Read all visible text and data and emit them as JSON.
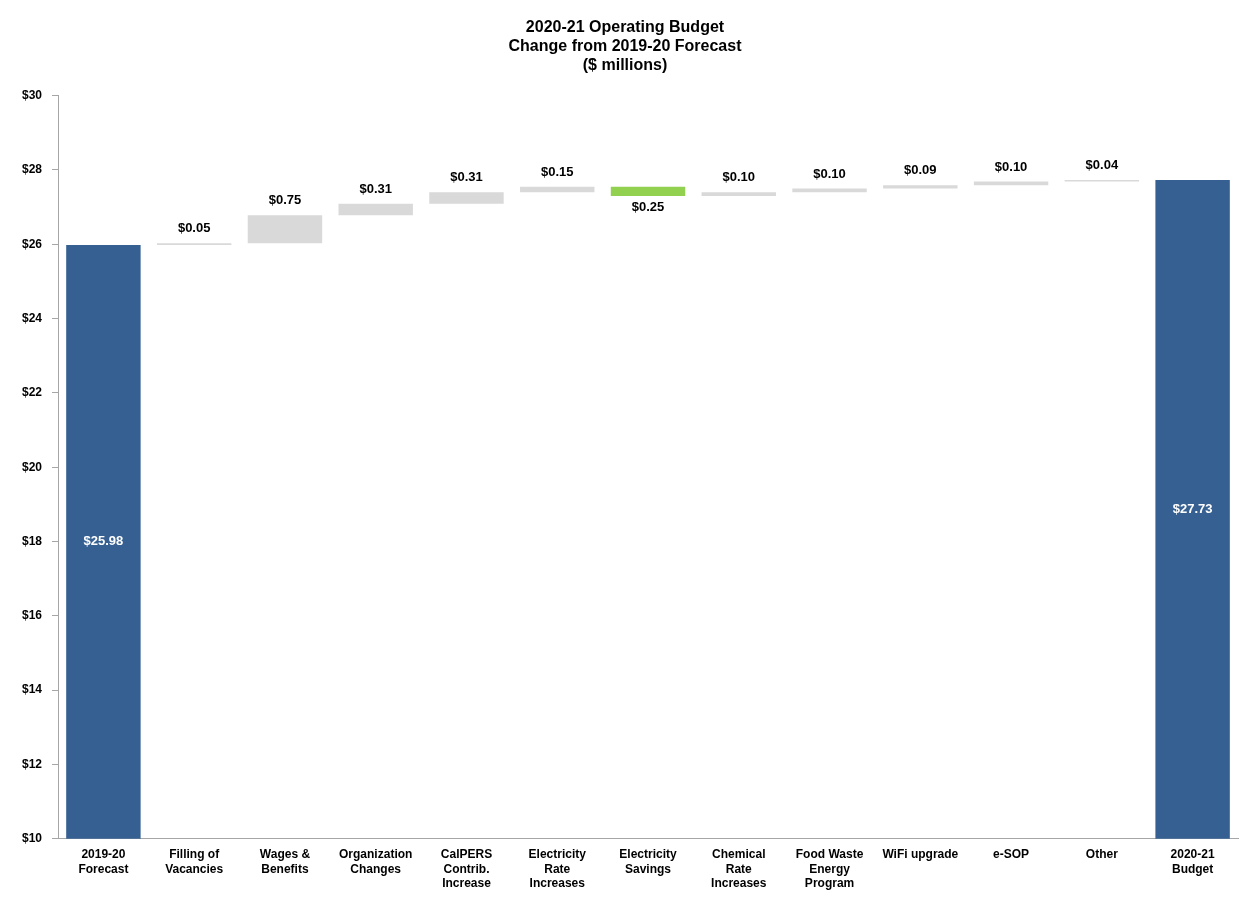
{
  "chart_data": {
    "type": "bar",
    "title": "2020-21 Operating Budget",
    "subtitle": "Change from 2019-20 Forecast ($ millions)",
    "categories": [
      "2019-20 Forecast",
      "Filling of Vacancies",
      "Wages & Benefits",
      "Organization Changes",
      "CalPERS Contrib. Increase",
      "Electricity Rate Increases",
      "Electricity Savings",
      "Chemical Rate Increases",
      "Food Waste Energy Program",
      "WiFi upgrade",
      "e-SOP",
      "Other",
      "2020-21 Budget"
    ],
    "values": [
      25.98,
      0.05,
      0.75,
      0.31,
      0.31,
      0.15,
      -0.25,
      0.1,
      0.1,
      0.09,
      0.1,
      0.04,
      27.73
    ],
    "base": [
      null,
      25.98,
      26.03,
      26.78,
      27.09,
      27.4,
      27.55,
      27.3,
      27.4,
      27.5,
      27.59,
      27.69,
      null
    ],
    "colors": [
      "#366092",
      "#d9d9d9",
      "#d9d9d9",
      "#d9d9d9",
      "#d9d9d9",
      "#d9d9d9",
      "#92d050",
      "#d9d9d9",
      "#d9d9d9",
      "#d9d9d9",
      "#d9d9d9",
      "#d9d9d9",
      "#366092"
    ],
    "value_labels": [
      "$25.98",
      "$0.05",
      "$0.75",
      "$0.31",
      "$0.31",
      "$0.15",
      "$0.25",
      "$0.10",
      "$0.10",
      "$0.09",
      "$0.10",
      "$0.04",
      "$27.73"
    ],
    "ylim": [
      10,
      30
    ],
    "yticks": [
      {
        "value": 10,
        "label": "$10"
      },
      {
        "value": 12,
        "label": "$12"
      },
      {
        "value": 14,
        "label": "$14"
      },
      {
        "value": 16,
        "label": "$16"
      },
      {
        "value": 18,
        "label": "$18"
      },
      {
        "value": 20,
        "label": "$20"
      },
      {
        "value": 22,
        "label": "$22"
      },
      {
        "value": 24,
        "label": "$24"
      },
      {
        "value": 26,
        "label": "$26"
      },
      {
        "value": 28,
        "label": "$28"
      },
      {
        "value": 30,
        "label": "$30"
      }
    ],
    "grid": false,
    "legend": false
  }
}
